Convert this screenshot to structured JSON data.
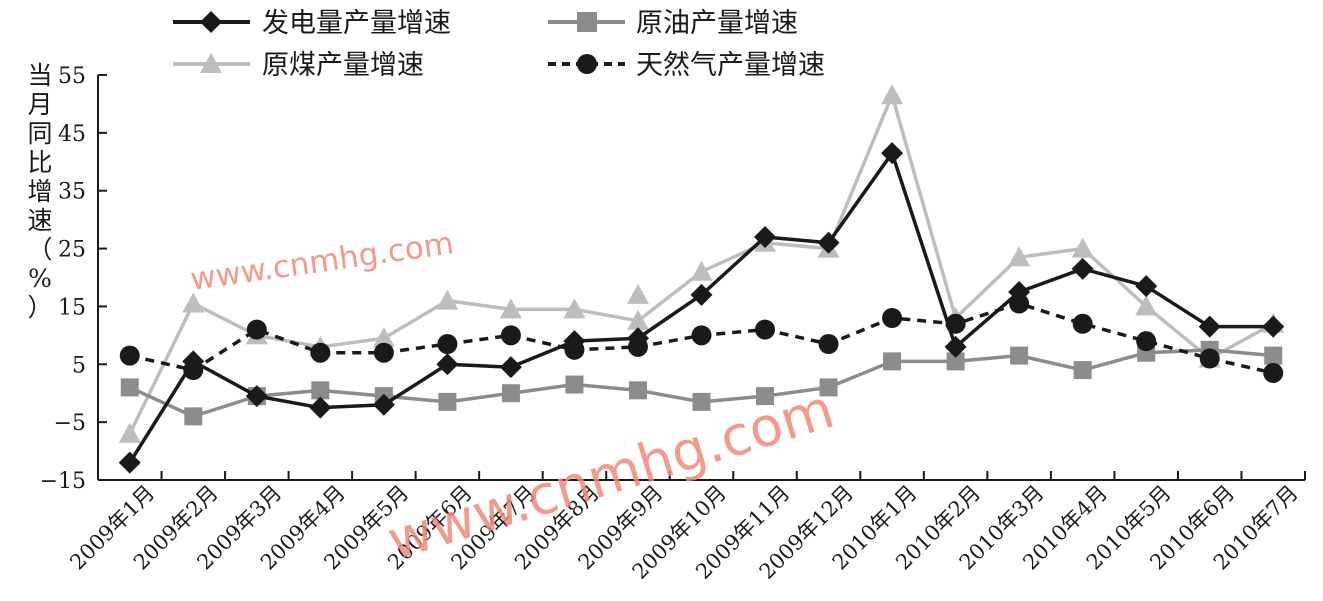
{
  "chart_data": {
    "type": "line",
    "ylabel": "当月同比增速（%）",
    "ylim": [
      -15,
      55
    ],
    "yticks": [
      "-15",
      "-5",
      "5",
      "15",
      "25",
      "35",
      "45",
      "55"
    ],
    "categories": [
      "2009年1月",
      "2009年2月",
      "2009年3月",
      "2009年4月",
      "2009年5月",
      "2009年6月",
      "2009年7月",
      "2009年8月",
      "2009年9月",
      "2009年10月",
      "2009年11月",
      "2009年12月",
      "2010年1月",
      "2010年2月",
      "2010年3月",
      "2010年4月",
      "2010年5月",
      "2010年6月",
      "2010年7月"
    ],
    "series": [
      {
        "name": "发电量产量增速",
        "color": "#1a1a1a",
        "marker": "diamond",
        "dash": "solid",
        "values": [
          -12.0,
          5.5,
          -0.5,
          -2.5,
          -2.0,
          5.0,
          4.5,
          9.0,
          9.5,
          17.0,
          27.0,
          26.0,
          41.5,
          8.0,
          17.5,
          21.5,
          18.5,
          11.5,
          11.5
        ]
      },
      {
        "name": "原油产量增速",
        "color": "#8c8c8c",
        "marker": "square",
        "dash": "solid",
        "values": [
          1.0,
          -4.0,
          -0.5,
          0.5,
          -0.5,
          -1.5,
          0.0,
          1.5,
          0.5,
          -1.5,
          -0.5,
          1.0,
          5.5,
          5.5,
          6.5,
          4.0,
          7.0,
          7.5,
          6.5
        ]
      },
      {
        "name": "原煤产量增速",
        "color": "#bdbdbd",
        "marker": "triangle",
        "dash": "solid",
        "values": [
          -7.0,
          15.5,
          10.0,
          8.0,
          9.5,
          16.0,
          14.5,
          14.5,
          12.5,
          21.0,
          26.0,
          25.0,
          51.5,
          13.0,
          23.5,
          25.0,
          15.0,
          6.0,
          12.0
        ],
        "stray_marker": {
          "x_index": 8,
          "value": 17.0
        }
      },
      {
        "name": "天然气产量增速",
        "color": "#1a1a1a",
        "marker": "circle",
        "dash": "dashed",
        "values": [
          6.5,
          4.0,
          11.0,
          7.0,
          7.0,
          8.5,
          10.0,
          7.5,
          8.0,
          10.0,
          11.0,
          8.5,
          13.0,
          12.0,
          15.5,
          12.0,
          9.0,
          6.0,
          3.5
        ]
      }
    ],
    "legend": {
      "placement": "top",
      "columns": 2
    }
  },
  "watermark": {
    "text_small": "www.cnmhg.com",
    "text_large": "www.cnmhg.com"
  }
}
